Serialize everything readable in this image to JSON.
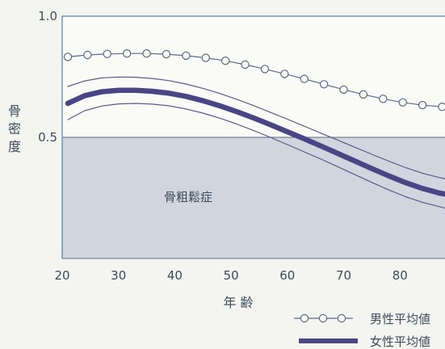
{
  "chart_data": {
    "type": "line",
    "title": "",
    "xlabel": "年 齢",
    "ylabel": "骨密度",
    "xlim": [
      20,
      88
    ],
    "ylim": [
      0.0,
      1.0
    ],
    "x_ticks": [
      "20",
      "30",
      "40",
      "50",
      "60",
      "70",
      "80"
    ],
    "y_ticks": [
      "0.5",
      "1.0"
    ],
    "region": {
      "label": "骨粗鬆症",
      "y_below": 0.5,
      "color": "#cfd6de"
    },
    "series": [
      {
        "name": "男性平均値",
        "style": "line-with-circles",
        "color": "#5a6a8a",
        "x": [
          21,
          24.5,
          28,
          31.5,
          35,
          38.5,
          42,
          45.5,
          49,
          52.5,
          56,
          59.5,
          63,
          66.5,
          70,
          73.5,
          77,
          80.5,
          84,
          87.5
        ],
        "y": [
          0.832,
          0.84,
          0.844,
          0.846,
          0.846,
          0.843,
          0.837,
          0.828,
          0.816,
          0.8,
          0.782,
          0.762,
          0.741,
          0.719,
          0.697,
          0.677,
          0.659,
          0.644,
          0.633,
          0.626
        ]
      },
      {
        "name": "女性平均値",
        "style": "thick",
        "color": "#4a4585",
        "x": [
          21,
          24,
          27,
          30,
          33,
          36,
          39,
          42,
          45,
          48,
          51,
          54,
          57,
          60,
          63,
          66,
          69,
          72,
          75,
          78,
          81,
          84,
          87,
          88
        ],
        "y": [
          0.64,
          0.672,
          0.688,
          0.694,
          0.694,
          0.69,
          0.682,
          0.669,
          0.651,
          0.63,
          0.606,
          0.58,
          0.552,
          0.523,
          0.494,
          0.464,
          0.433,
          0.402,
          0.371,
          0.341,
          0.313,
          0.289,
          0.27,
          0.266
        ]
      },
      {
        "name": "",
        "style": "thin-band",
        "color": "#5a5a8a",
        "x": [
          21,
          24,
          27,
          30,
          33,
          36,
          39,
          42,
          45,
          48,
          51,
          54,
          57,
          60,
          63,
          66,
          69,
          72,
          75,
          78,
          81,
          84,
          87,
          88
        ],
        "y": [
          0.71,
          0.733,
          0.745,
          0.749,
          0.748,
          0.743,
          0.734,
          0.72,
          0.702,
          0.681,
          0.657,
          0.631,
          0.603,
          0.575,
          0.546,
          0.517,
          0.488,
          0.459,
          0.43,
          0.402,
          0.375,
          0.352,
          0.334,
          0.329
        ]
      },
      {
        "name": "",
        "style": "thin-band",
        "color": "#5a5a8a",
        "x": [
          21,
          24,
          27,
          30,
          33,
          36,
          39,
          42,
          45,
          48,
          51,
          54,
          57,
          60,
          63,
          66,
          69,
          72,
          75,
          78,
          81,
          84,
          87,
          88
        ],
        "y": [
          0.573,
          0.61,
          0.629,
          0.638,
          0.64,
          0.637,
          0.63,
          0.617,
          0.6,
          0.579,
          0.555,
          0.528,
          0.5,
          0.47,
          0.44,
          0.41,
          0.378,
          0.346,
          0.314,
          0.283,
          0.255,
          0.232,
          0.214,
          0.208
        ]
      }
    ],
    "legend": [
      {
        "label": "男性平均値",
        "marker": "line-with-circles"
      },
      {
        "label": "女性平均値",
        "marker": "thick-line"
      }
    ]
  }
}
